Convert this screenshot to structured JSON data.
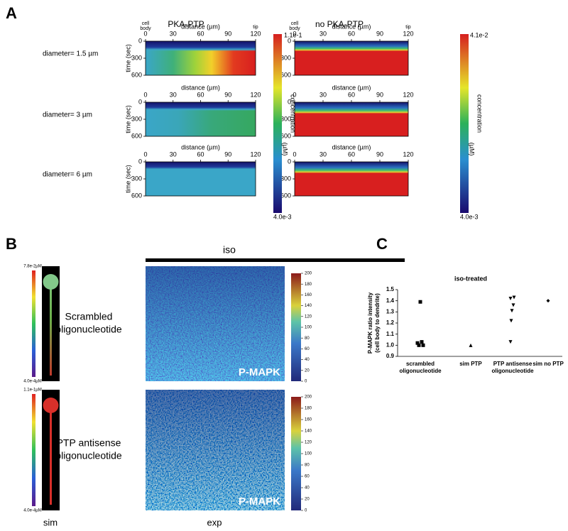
{
  "panel_a": {
    "label": "A",
    "columns": [
      "PKA-PTP",
      "no PKA-PTP"
    ],
    "cell_body": [
      "cell",
      "body"
    ],
    "tip": "tip",
    "x_label": "distance (µm)",
    "y_label": "time (sec)",
    "xlim": [
      0,
      120
    ],
    "xticks": [
      0,
      30,
      60,
      90,
      120
    ],
    "ylim": [
      0,
      600
    ],
    "yticks": [
      0,
      300,
      600
    ],
    "rows": [
      "diameter= 1.5 µm",
      "diameter= 3 µm",
      "diameter= 6 µm"
    ],
    "colorbars": [
      {
        "max": "1.1e-1",
        "min": "4.0e-3"
      },
      {
        "max": "4.1e-2",
        "min": "4.0e-3"
      }
    ],
    "colorbar_label": "concentration",
    "colorbar_unit": "(µM)"
  },
  "panel_b": {
    "label": "B",
    "condition": "iso",
    "rows": [
      {
        "label": [
          "Scrambled",
          "oligonucleotide"
        ],
        "sim_max": "7.8e-2µM",
        "sim_min": "4.0e-4µM",
        "stain": "P-MAPK"
      },
      {
        "label": [
          "PTP antisense",
          "oligonucleotide"
        ],
        "sim_max": "1.1e-1µM",
        "sim_min": "4.0e-4µM",
        "stain": "P-MAPK"
      }
    ],
    "colorbar_lim": [
      0,
      200
    ],
    "colorbar_ticks": [
      0,
      20,
      40,
      60,
      80,
      100,
      120,
      140,
      160,
      180,
      200
    ],
    "sim": "sim",
    "exp": "exp"
  },
  "chart_data": {
    "type": "scatter",
    "label": "C",
    "title": "iso-treated",
    "y_label": [
      "P-MAPK ratio intensity",
      "(cell body to dendrite)"
    ],
    "categories": [
      [
        "scrambled",
        "oligonucleotide"
      ],
      [
        "sim PTP"
      ],
      [
        "PTP antisense",
        "oligonucleotide"
      ],
      [
        "sim no PTP"
      ]
    ],
    "values": [
      [
        1.39,
        1.02,
        1.03,
        1.0,
        1.0
      ],
      [
        1.0
      ],
      [
        1.42,
        1.43,
        1.36,
        1.31,
        1.22,
        1.03
      ],
      [
        1.4
      ]
    ],
    "markers": [
      "square",
      "triangle",
      "triangle-down",
      "diamond"
    ],
    "color": "#000000",
    "ylim": [
      0.9,
      1.5
    ],
    "yticks": [
      0.9,
      {
        "value": 1,
        "label": "1.0"
      },
      1.1,
      1.2,
      1.3,
      1.4,
      1.5
    ]
  }
}
